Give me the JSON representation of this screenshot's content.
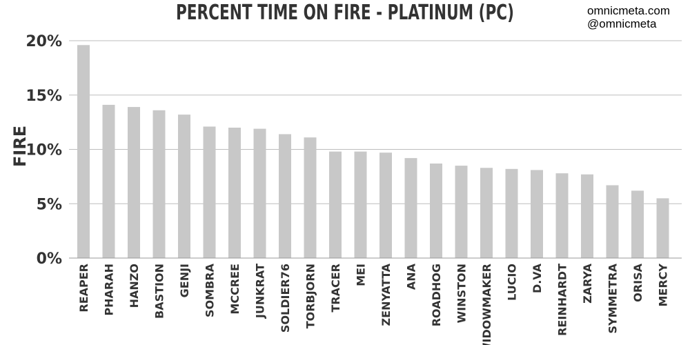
{
  "watermark": {
    "site": "omnicmeta.com",
    "handle": "@omnicmeta"
  },
  "chart_data": {
    "type": "bar",
    "title": "PERCENT TIME ON FIRE - PLATINUM (PC)",
    "xlabel": "",
    "ylabel": "FIRE",
    "ylim": [
      0,
      20
    ],
    "yticks": [
      0,
      5,
      10,
      15,
      20
    ],
    "ytick_labels": [
      "0%",
      "5%",
      "10%",
      "15%",
      "20%"
    ],
    "grid": true,
    "bar_color": "#c8c8c8",
    "categories": [
      "REAPER",
      "PHARAH",
      "HANZO",
      "BASTION",
      "GENJI",
      "SOMBRA",
      "MCCREE",
      "JUNKRAT",
      "SOLDIER76",
      "TORBJORN",
      "TRACER",
      "MEI",
      "ZENYATTA",
      "ANA",
      "ROADHOG",
      "WINSTON",
      "WIDOWMAKER",
      "LUCIO",
      "D.VA",
      "REINHARDT",
      "ZARYA",
      "SYMMETRA",
      "ORISA",
      "MERCY"
    ],
    "values": [
      19.6,
      14.1,
      13.9,
      13.6,
      13.2,
      12.1,
      12.0,
      11.9,
      11.4,
      11.1,
      9.8,
      9.8,
      9.7,
      9.2,
      8.7,
      8.5,
      8.3,
      8.2,
      8.1,
      7.8,
      7.7,
      6.7,
      6.2,
      5.5
    ]
  }
}
